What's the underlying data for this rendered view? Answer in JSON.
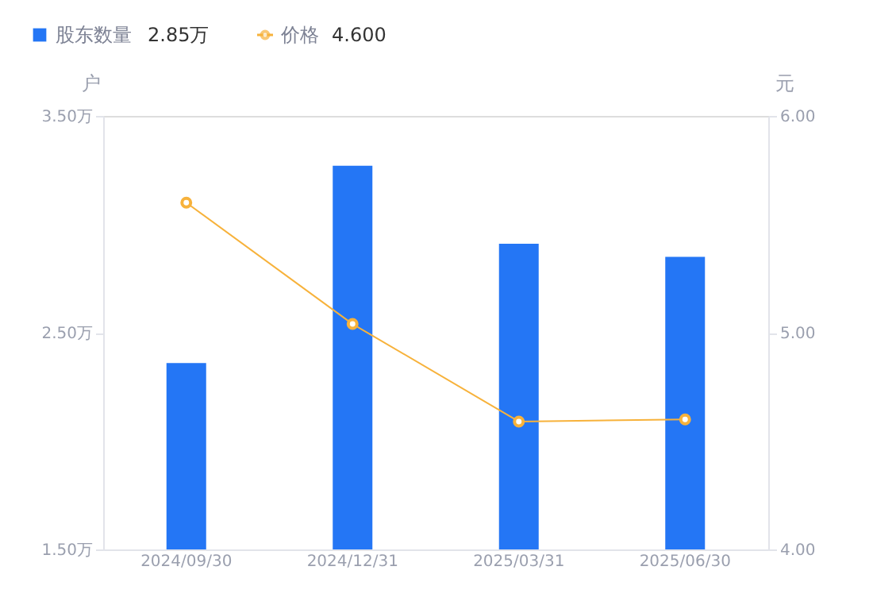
{
  "chart_data": {
    "type": "bar",
    "categories": [
      "2024/09/30",
      "2024/12/31",
      "2025/03/31",
      "2025/06/30"
    ],
    "series": [
      {
        "name": "股东数量",
        "color": "#2476f5",
        "values": [
          2.36,
          3.27,
          2.91,
          2.85
        ]
      },
      {
        "name": "价格",
        "type": "line",
        "axis": "y2",
        "color": "#f7b23b",
        "marker": "circle",
        "values": [
          5.6,
          5.04,
          4.59,
          4.6
        ]
      }
    ],
    "ylabel": "户",
    "y2label": "元",
    "ylim": [
      1.5,
      3.5
    ],
    "yticks": [
      {
        "value": 1.5,
        "label": "1.50万"
      },
      {
        "value": 2.5,
        "label": "2.50万"
      },
      {
        "value": 3.5,
        "label": "3.50万"
      }
    ],
    "y2lim": [
      4.0,
      6.0
    ],
    "y2ticks": [
      {
        "value": 4.0,
        "label": "4.00"
      },
      {
        "value": 5.0,
        "label": "5.00"
      },
      {
        "value": 6.0,
        "label": "6.00"
      }
    ],
    "annotations": [
      "2.85万",
      "4.600"
    ],
    "legend": "top left",
    "grid": false
  }
}
